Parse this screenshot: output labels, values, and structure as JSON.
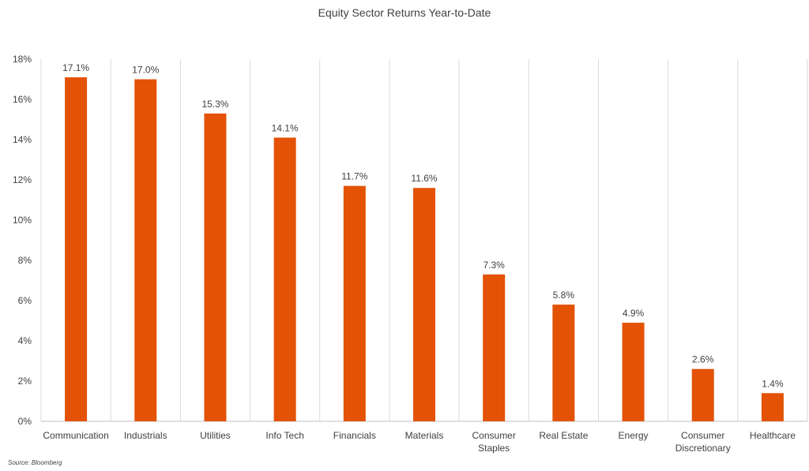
{
  "chart_data": {
    "type": "bar",
    "title": "Equity Sector Returns Year-to-Date",
    "categories": [
      [
        "Communication"
      ],
      [
        "Industrials"
      ],
      [
        "Utilities"
      ],
      [
        "Info Tech"
      ],
      [
        "Financials"
      ],
      [
        "Materials"
      ],
      [
        "Consumer",
        "Staples"
      ],
      [
        "Real Estate"
      ],
      [
        "Energy"
      ],
      [
        "Consumer",
        "Discretionary"
      ],
      [
        "Healthcare"
      ]
    ],
    "values": [
      17.1,
      17.0,
      15.3,
      14.1,
      11.7,
      11.6,
      7.3,
      5.8,
      4.9,
      2.6,
      1.4
    ],
    "data_labels": [
      "17.1%",
      "17.0%",
      "15.3%",
      "14.1%",
      "11.7%",
      "11.6%",
      "7.3%",
      "5.8%",
      "4.9%",
      "2.6%",
      "1.4%"
    ],
    "yticks": [
      0,
      2,
      4,
      6,
      8,
      10,
      12,
      14,
      16,
      18
    ],
    "ytick_labels": [
      "0%",
      "2%",
      "4%",
      "6%",
      "8%",
      "10%",
      "12%",
      "14%",
      "16%",
      "18%"
    ],
    "ylim": [
      0,
      18
    ],
    "xlabel": "",
    "ylabel": "",
    "grid": "vertical category separators",
    "legend": "none",
    "bar_color": "#E35205",
    "grid_color": "#D9D9D9",
    "axis_color": "#BFBFBF",
    "source": "Source: Bloomberg"
  }
}
